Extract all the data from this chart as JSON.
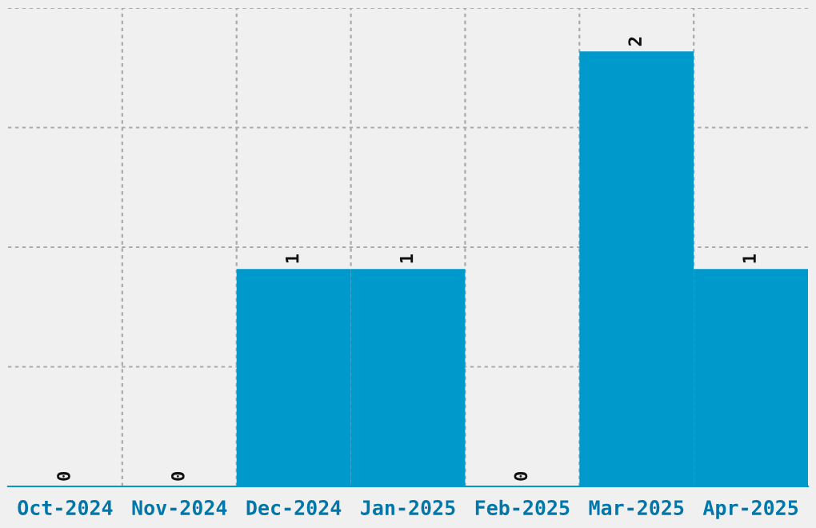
{
  "chart_data": {
    "type": "bar",
    "categories": [
      "Oct-2024",
      "Nov-2024",
      "Dec-2024",
      "Jan-2025",
      "Feb-2025",
      "Mar-2025",
      "Apr-2025"
    ],
    "values": [
      0,
      0,
      1,
      1,
      0,
      2,
      1
    ],
    "color": "#0099cc",
    "ylim": [
      0,
      2.2
    ],
    "yticks": [
      {
        "value": 0.55,
        "label": null
      },
      {
        "value": 1.1,
        "label": null
      },
      {
        "value": 1.65,
        "label": null
      },
      {
        "value": 2.2,
        "label": null
      }
    ],
    "data_labels": true,
    "grid": true
  }
}
